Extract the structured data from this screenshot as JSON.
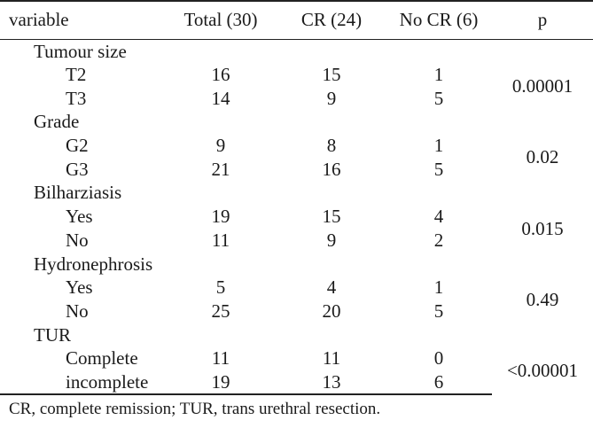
{
  "table": {
    "headers": [
      "variable",
      "Total (30)",
      "CR (24)",
      "No CR (6)",
      "p"
    ],
    "groups": [
      {
        "label": "Tumour size",
        "p": "0.00001",
        "rows": [
          {
            "label": "T2",
            "total": "16",
            "cr": "15",
            "nocr": "1"
          },
          {
            "label": "T3",
            "total": "14",
            "cr": "9",
            "nocr": "5"
          }
        ]
      },
      {
        "label": "Grade",
        "p": "0.02",
        "rows": [
          {
            "label": "G2",
            "total": "9",
            "cr": "8",
            "nocr": "1"
          },
          {
            "label": "G3",
            "total": "21",
            "cr": "16",
            "nocr": "5"
          }
        ]
      },
      {
        "label": "Bilharziasis",
        "p": "0.015",
        "rows": [
          {
            "label": "Yes",
            "total": "19",
            "cr": "15",
            "nocr": "4"
          },
          {
            "label": "No",
            "total": "11",
            "cr": "9",
            "nocr": "2"
          }
        ]
      },
      {
        "label": "Hydronephrosis",
        "p": "0.49",
        "rows": [
          {
            "label": "Yes",
            "total": "5",
            "cr": "4",
            "nocr": "1"
          },
          {
            "label": "No",
            "total": "25",
            "cr": "20",
            "nocr": "5"
          }
        ]
      },
      {
        "label": "TUR",
        "p": "<0.00001",
        "rows": [
          {
            "label": "Complete",
            "total": "11",
            "cr": "11",
            "nocr": "0"
          },
          {
            "label": "incomplete",
            "total": "19",
            "cr": "13",
            "nocr": "6"
          }
        ]
      }
    ]
  },
  "footnote": "CR, complete remission; TUR, trans urethral resection."
}
